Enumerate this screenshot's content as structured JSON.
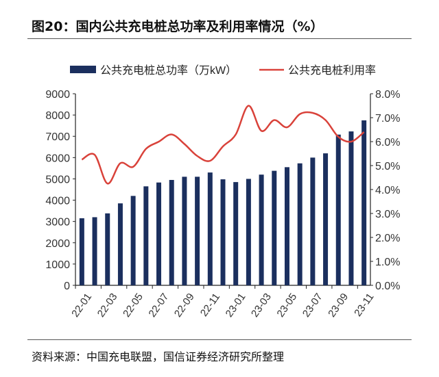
{
  "title": "图20：国内公共充电桩总功率及利用率情况（%）",
  "source": "资料来源：中国充电联盟，国信证券经济研究所整理",
  "chart_data": {
    "type": "bar+line",
    "categories": [
      "22-01",
      "22-02",
      "22-03",
      "22-04",
      "22-05",
      "22-06",
      "22-07",
      "22-08",
      "22-09",
      "22-10",
      "22-11",
      "22-12",
      "23-01",
      "23-02",
      "23-03",
      "23-04",
      "23-05",
      "23-06",
      "23-07",
      "23-08",
      "23-09",
      "23-10",
      "23-11"
    ],
    "x_tick_labels": [
      "22-01",
      "22-03",
      "22-05",
      "22-07",
      "22-09",
      "22-11",
      "23-01",
      "23-03",
      "23-05",
      "23-07",
      "23-09",
      "23-11"
    ],
    "series": [
      {
        "name": "公共充电桩总功率（万kW）",
        "type": "bar",
        "axis": "left",
        "color": "#1b2f5e",
        "values": [
          3150,
          3200,
          3380,
          3850,
          4200,
          4650,
          4830,
          4950,
          5100,
          5100,
          5300,
          4980,
          4850,
          5000,
          5200,
          5380,
          5550,
          5730,
          6000,
          6200,
          7080,
          7230,
          7750
        ]
      },
      {
        "name": "公共充电桩利用率",
        "type": "line",
        "axis": "right",
        "color": "#d9423a",
        "values": [
          5.25,
          5.45,
          4.25,
          5.1,
          4.95,
          5.7,
          6.0,
          6.3,
          5.9,
          5.4,
          5.2,
          5.8,
          6.3,
          7.5,
          6.45,
          6.9,
          6.6,
          7.15,
          7.2,
          6.9,
          6.2,
          6.0,
          6.4
        ]
      }
    ],
    "y_left": {
      "range": [
        0,
        9000
      ],
      "ticks": [
        "0",
        "1000",
        "2000",
        "3000",
        "4000",
        "5000",
        "6000",
        "7000",
        "8000",
        "9000"
      ]
    },
    "y_right": {
      "range": [
        0,
        8
      ],
      "ticks": [
        "0.0%",
        "1.0%",
        "2.0%",
        "3.0%",
        "4.0%",
        "5.0%",
        "6.0%",
        "7.0%",
        "8.0%"
      ]
    },
    "legend_position": "top",
    "grid": false
  }
}
